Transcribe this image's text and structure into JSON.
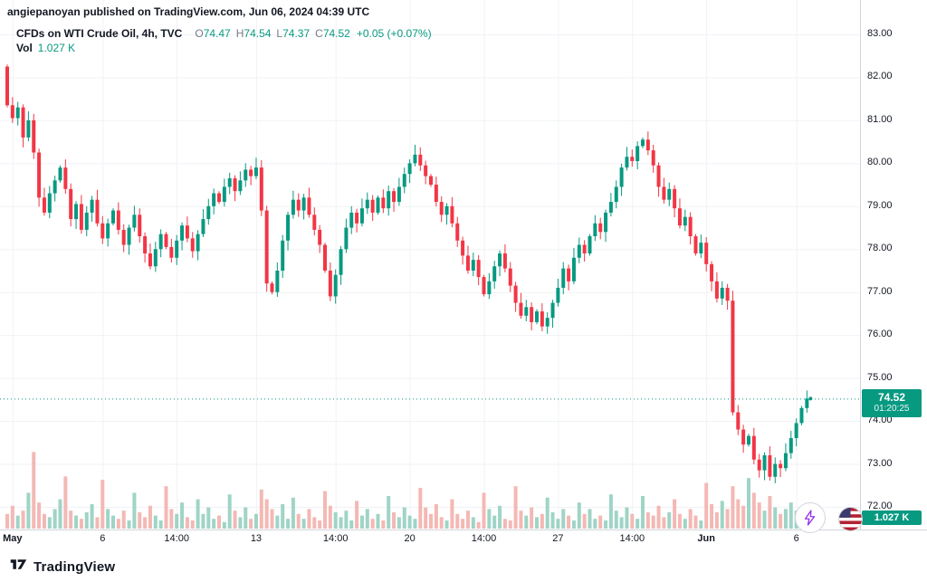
{
  "header": {
    "attribution": "angiepanoyan published on TradingView.com, Jun 06, 2024 04:39 UTC"
  },
  "legend": {
    "title": "CFDs on WTI Crude Oil, 4h, TVC",
    "ohlc": [
      {
        "label": "O",
        "value": "74.47"
      },
      {
        "label": "H",
        "value": "74.54"
      },
      {
        "label": "L",
        "value": "74.37"
      },
      {
        "label": "C",
        "value": "74.52"
      }
    ],
    "change": "+0.05 (+0.07%)",
    "vol_label": "Vol",
    "vol_value": "1.027 K"
  },
  "footer": {
    "brand": "TradingView"
  },
  "chart_data": {
    "type": "candlestick",
    "title": "CFDs on WTI Crude Oil",
    "exchange": "TVC",
    "timeframe": "4h",
    "ylim": [
      72,
      83
    ],
    "grid": true,
    "price_line_value": 74.52,
    "first_open": 82.25,
    "badges": {
      "price": "74.52",
      "countdown": "01:20:25",
      "volume": "1.027 K"
    },
    "colors": {
      "up": "#089981",
      "down": "#f23645",
      "vol_up": "#9fd4c6",
      "vol_down": "#f4b8b4",
      "grid": "#f0f2f6",
      "price_line": "#089981",
      "axis_border": "#d1d4dc",
      "badge_bg": "#089981"
    },
    "y_ticks": [
      {
        "label": "83.00",
        "value": 83
      },
      {
        "label": "82.00",
        "value": 82
      },
      {
        "label": "81.00",
        "value": 81
      },
      {
        "label": "80.00",
        "value": 80
      },
      {
        "label": "79.00",
        "value": 79
      },
      {
        "label": "78.00",
        "value": 78
      },
      {
        "label": "77.00",
        "value": 77
      },
      {
        "label": "76.00",
        "value": 76
      },
      {
        "label": "75.00",
        "value": 75
      },
      {
        "label": "74.00",
        "value": 74
      },
      {
        "label": "73.00",
        "value": 73
      },
      {
        "label": "72.00",
        "value": 72
      }
    ],
    "x_ticks": [
      {
        "label": "May",
        "index": 1,
        "bold": true
      },
      {
        "label": "6",
        "index": 18,
        "bold": false
      },
      {
        "label": "14:00",
        "index": 32,
        "bold": false
      },
      {
        "label": "13",
        "index": 47,
        "bold": false
      },
      {
        "label": "14:00",
        "index": 62,
        "bold": false
      },
      {
        "label": "20",
        "index": 76,
        "bold": false
      },
      {
        "label": "14:00",
        "index": 90,
        "bold": false
      },
      {
        "label": "27",
        "index": 104,
        "bold": false
      },
      {
        "label": "14:00",
        "index": 118,
        "bold": false
      },
      {
        "label": "Jun",
        "index": 132,
        "bold": true
      },
      {
        "label": "6",
        "index": 149,
        "bold": false
      }
    ],
    "closes": [
      81.35,
      81.05,
      81.3,
      80.6,
      81.0,
      80.25,
      79.2,
      78.85,
      79.3,
      79.6,
      79.9,
      79.4,
      78.7,
      79.05,
      78.45,
      78.85,
      79.15,
      78.6,
      78.25,
      78.6,
      78.9,
      78.45,
      78.1,
      78.5,
      78.8,
      78.3,
      77.9,
      77.6,
      78.0,
      78.35,
      78.05,
      77.8,
      78.2,
      78.55,
      78.25,
      77.95,
      78.35,
      78.7,
      79.0,
      79.3,
      79.1,
      79.45,
      79.65,
      79.35,
      79.6,
      79.85,
      79.7,
      79.9,
      78.9,
      77.2,
      77.0,
      77.5,
      78.2,
      78.8,
      79.15,
      78.9,
      79.2,
      78.8,
      78.45,
      78.1,
      77.5,
      76.9,
      77.4,
      78.0,
      78.5,
      78.85,
      78.6,
      78.95,
      79.15,
      78.85,
      79.2,
      78.95,
      79.35,
      79.1,
      79.45,
      79.75,
      80.0,
      80.2,
      79.95,
      79.7,
      79.5,
      79.1,
      78.8,
      79.0,
      78.6,
      78.2,
      77.85,
      77.5,
      77.75,
      77.35,
      76.95,
      77.25,
      77.6,
      77.9,
      77.55,
      77.15,
      76.75,
      76.45,
      76.65,
      76.3,
      76.55,
      76.2,
      76.4,
      76.75,
      77.1,
      77.55,
      77.25,
      77.8,
      78.1,
      77.9,
      78.3,
      78.6,
      78.4,
      78.85,
      79.1,
      79.45,
      79.9,
      80.15,
      80.05,
      80.4,
      80.55,
      80.3,
      79.95,
      79.45,
      79.15,
      79.4,
      78.95,
      78.55,
      78.75,
      78.3,
      77.9,
      78.15,
      77.65,
      77.25,
      76.85,
      77.1,
      76.8,
      74.2,
      73.8,
      73.45,
      73.65,
      73.1,
      72.85,
      73.2,
      72.7,
      73.0,
      72.9,
      73.25,
      73.6,
      73.95,
      74.3,
      74.52
    ],
    "volumes": [
      0.9,
      1.4,
      0.8,
      1.1,
      2.2,
      4.7,
      1.6,
      0.9,
      0.7,
      1.2,
      1.8,
      3.2,
      1.1,
      0.8,
      0.6,
      1.0,
      1.5,
      0.7,
      3.0,
      1.2,
      0.8,
      0.6,
      1.1,
      0.5,
      2.2,
      1.0,
      0.7,
      1.4,
      0.8,
      0.5,
      2.6,
      1.2,
      0.9,
      1.6,
      0.7,
      0.5,
      1.8,
      0.9,
      1.3,
      0.6,
      0.8,
      0.4,
      2.1,
      1.1,
      0.7,
      1.3,
      0.6,
      0.9,
      2.4,
      1.8,
      1.2,
      0.8,
      1.5,
      0.6,
      1.9,
      0.9,
      0.6,
      1.2,
      0.7,
      0.5,
      2.3,
      1.4,
      1.0,
      0.7,
      1.1,
      0.5,
      1.7,
      0.8,
      1.2,
      0.6,
      0.9,
      0.5,
      2.0,
      1.0,
      0.7,
      1.3,
      0.8,
      0.6,
      2.5,
      1.3,
      0.9,
      1.5,
      0.7,
      0.5,
      1.8,
      0.9,
      0.6,
      1.1,
      0.7,
      0.4,
      2.2,
      1.2,
      0.8,
      1.4,
      0.6,
      0.5,
      2.6,
      1.1,
      0.8,
      1.3,
      0.7,
      0.9,
      1.9,
      1.0,
      0.6,
      1.2,
      0.8,
      0.5,
      1.6,
      0.9,
      1.2,
      0.6,
      0.8,
      0.5,
      2.1,
      1.1,
      0.7,
      1.3,
      0.9,
      0.6,
      2.0,
      1.0,
      0.8,
      1.4,
      0.7,
      1.0,
      1.8,
      0.9,
      0.6,
      1.2,
      0.8,
      0.5,
      2.8,
      1.5,
      1.0,
      1.7,
      1.2,
      2.6,
      1.8,
      1.4,
      3.1,
      2.2,
      1.6,
      1.1,
      2.0,
      1.3,
      0.9,
      1.2,
      1.6,
      1.1,
      0.8,
      1.027
    ]
  }
}
